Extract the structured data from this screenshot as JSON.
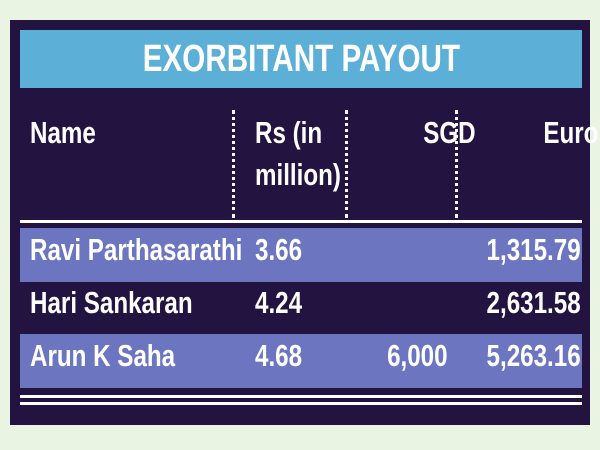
{
  "title": "EXORBITANT PAYOUT",
  "table": {
    "header": [
      "Name",
      "Rs (in million)",
      "SGD",
      "Euro"
    ],
    "rows": [
      [
        "Ravi Parthasarathi",
        "3.66",
        null,
        "1,315.79"
      ],
      [
        "Hari Sankaran",
        "4.24",
        null,
        "2,631.58"
      ],
      [
        "Arun K Saha",
        "4.68",
        "6,000",
        "5,263.16"
      ]
    ]
  }
}
